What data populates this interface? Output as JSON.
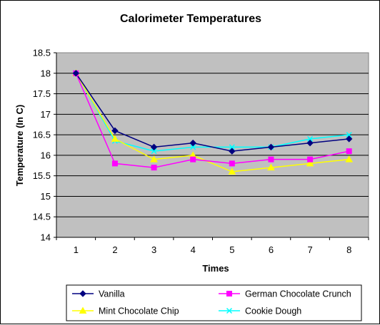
{
  "chart_data": {
    "type": "line",
    "title": "Calorimeter Temperatures",
    "xlabel": "Times",
    "ylabel": "Temperature (In C)",
    "x": [
      1,
      2,
      3,
      4,
      5,
      6,
      7,
      8
    ],
    "ylim": [
      14,
      18.5
    ],
    "yticks": [
      "14",
      "14.5",
      "15",
      "15.5",
      "16",
      "16.5",
      "17",
      "17.5",
      "18",
      "18.5"
    ],
    "grid": true,
    "plot_background": "#c0c0c0",
    "legend_position": "bottom",
    "series": [
      {
        "name": "Vanilla",
        "color": "#000080",
        "marker": "diamond",
        "values": [
          18.0,
          16.6,
          16.2,
          16.3,
          16.1,
          16.2,
          16.3,
          16.4
        ]
      },
      {
        "name": "German Chocolate Crunch",
        "color": "#ff00ff",
        "marker": "square",
        "values": [
          18.0,
          15.8,
          15.7,
          15.9,
          15.8,
          15.9,
          15.9,
          16.1
        ]
      },
      {
        "name": "Mint Chocolate Chip",
        "color": "#ffff00",
        "marker": "triangle",
        "values": [
          18.0,
          16.4,
          15.9,
          16.0,
          15.6,
          15.7,
          15.8,
          15.9
        ]
      },
      {
        "name": "Cookie Dough",
        "color": "#00ffff",
        "marker": "x",
        "values": [
          18.0,
          16.35,
          16.1,
          16.2,
          16.2,
          16.2,
          16.4,
          16.5
        ]
      }
    ]
  }
}
